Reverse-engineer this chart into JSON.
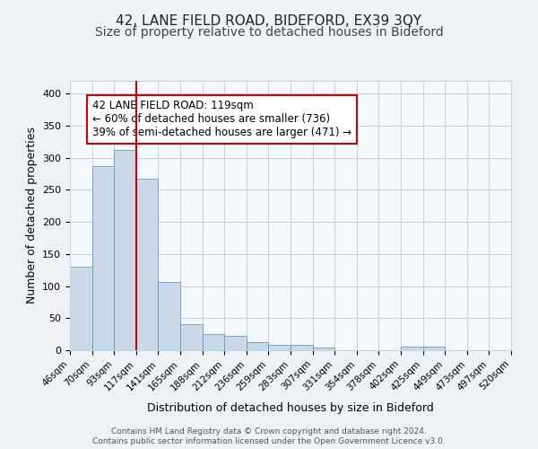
{
  "title1": "42, LANE FIELD ROAD, BIDEFORD, EX39 3QY",
  "title2": "Size of property relative to detached houses in Bideford",
  "xlabel": "Distribution of detached houses by size in Bideford",
  "ylabel": "Number of detached properties",
  "bin_labels": [
    "46sqm",
    "70sqm",
    "93sqm",
    "117sqm",
    "141sqm",
    "165sqm",
    "188sqm",
    "212sqm",
    "236sqm",
    "259sqm",
    "283sqm",
    "307sqm",
    "331sqm",
    "354sqm",
    "378sqm",
    "402sqm",
    "425sqm",
    "449sqm",
    "473sqm",
    "497sqm",
    "520sqm"
  ],
  "bar_values": [
    130,
    287,
    312,
    268,
    106,
    41,
    25,
    22,
    13,
    9,
    9,
    4,
    0,
    0,
    0,
    5,
    5,
    0,
    0,
    0
  ],
  "bar_color": "#c9d9e8",
  "bar_edge_color": "#6a9ec0",
  "vline_color": "#cc0000",
  "annotation_text": "42 LANE FIELD ROAD: 119sqm\n← 60% of detached houses are smaller (736)\n39% of semi-detached houses are larger (471) →",
  "annotation_box_color": "#ffffff",
  "annotation_box_edge": "#cc0000",
  "ylim": [
    0,
    420
  ],
  "yticks": [
    0,
    50,
    100,
    150,
    200,
    250,
    300,
    350,
    400
  ],
  "footer_line1": "Contains HM Land Registry data © Crown copyright and database right 2024.",
  "footer_line2": "Contains public sector information licensed under the Open Government Licence v3.0.",
  "bg_color": "#eef2f7",
  "plot_bg_color": "#f5f8fc",
  "grid_color": "#c8d4e0",
  "title1_fontsize": 11,
  "title2_fontsize": 10,
  "xlabel_fontsize": 9,
  "ylabel_fontsize": 9,
  "vline_bar_index": 3
}
